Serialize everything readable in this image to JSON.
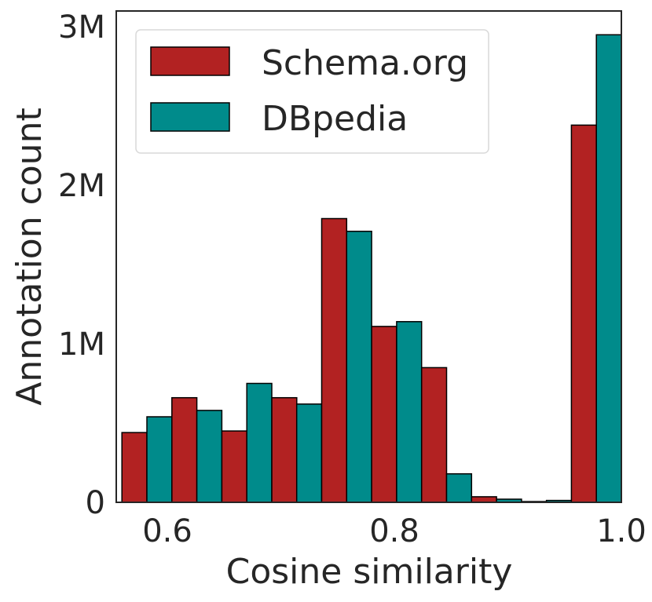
{
  "chart_data": {
    "type": "bar",
    "title": "",
    "xlabel": "Cosine similarity",
    "ylabel": "Annotation count",
    "xlim": [
      0.555,
      1.0
    ],
    "ylim": [
      0,
      3100000
    ],
    "bin_width": 0.044,
    "xticks": [
      {
        "value": 0.6,
        "label": "0.6"
      },
      {
        "value": 0.8,
        "label": "0.8"
      },
      {
        "value": 1.0,
        "label": "1.0"
      }
    ],
    "yticks": [
      {
        "value": 0,
        "label": "0"
      },
      {
        "value": 1000000,
        "label": "1M"
      },
      {
        "value": 2000000,
        "label": "2M"
      },
      {
        "value": 3000000,
        "label": "3M"
      }
    ],
    "bin_starts": [
      0.56,
      0.604,
      0.648,
      0.692,
      0.736,
      0.78,
      0.824,
      0.868,
      0.912,
      0.956
    ],
    "series": [
      {
        "name": "Schema.org",
        "color": "#b22222",
        "values": [
          440000,
          660000,
          450000,
          660000,
          1790000,
          1110000,
          850000,
          35000,
          5000,
          2380000
        ]
      },
      {
        "name": "DBpedia",
        "color": "#008b8b",
        "values": [
          540000,
          580000,
          750000,
          620000,
          1710000,
          1140000,
          180000,
          20000,
          12000,
          2950000
        ]
      }
    ],
    "legend": {
      "position": "top-left",
      "entries": [
        "Schema.org",
        "DBpedia"
      ]
    },
    "grid": false
  }
}
